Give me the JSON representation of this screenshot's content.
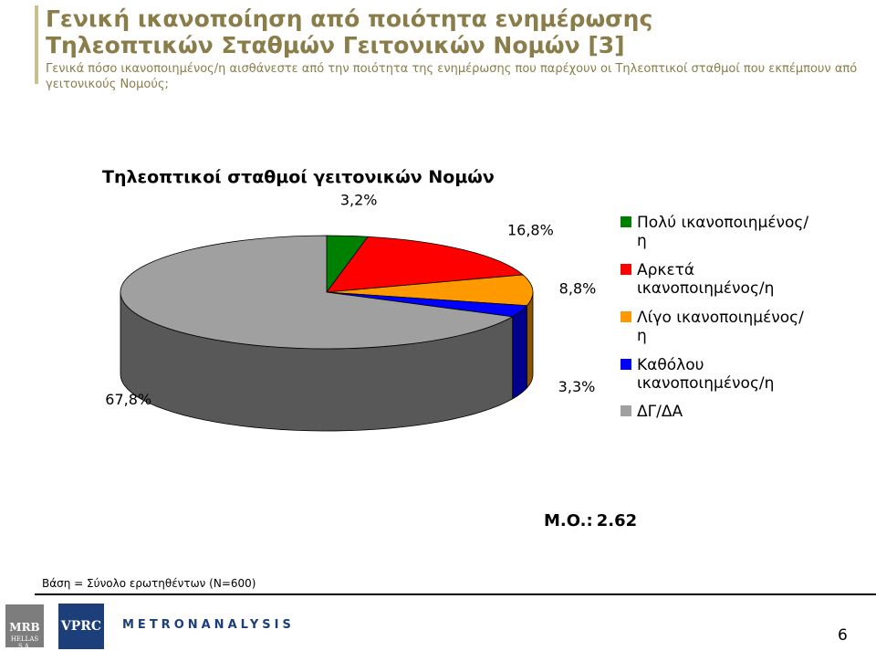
{
  "header": {
    "title_line1": "Γενική ικανοποίηση από ποιότητα ενημέρωσης",
    "title_line2": "Τηλεοπτικών Σταθμών Γειτονικών Νομών [3]",
    "question": "Γενικά πόσο ικανοποιημένος/η αισθάνεστε από την ποιότητα της ενημέρωσης που παρέχουν οι Τηλεοπτικοί σταθμοί που εκπέμπουν από γειτονικούς Νομούς;"
  },
  "chart_data": {
    "type": "pie",
    "title": "Τηλεοπτικοί σταθμοί γειτονικών Νομών",
    "categories": [
      "Πολύ ικανοποιημένος/η",
      "Αρκετά ικανοποιημένος/η",
      "Λίγο ικανοποιημένος/η",
      "Καθόλου ικανοποιημένος/η",
      "ΔΓ/ΔΑ"
    ],
    "values": [
      3.2,
      16.8,
      8.8,
      3.3,
      67.8
    ],
    "labels": [
      "3,2%",
      "16,8%",
      "8,8%",
      "3,3%",
      "67,8%"
    ],
    "colors": [
      "#008000",
      "#ff0000",
      "#ff9900",
      "#0000ff",
      "#a0a0a0"
    ],
    "legend_position": "right"
  },
  "legend": {
    "items": [
      {
        "label": "Πολύ ικανοποιημένος/η",
        "color": "#008000"
      },
      {
        "label": "Αρκετά ικανοποιημένος/η",
        "color": "#ff0000"
      },
      {
        "label": "Λίγο ικανοποιημένος/η",
        "color": "#ff9900"
      },
      {
        "label": "Καθόλου ικανοποιημένος/η",
        "color": "#0000ff"
      },
      {
        "label": "ΔΓ/ΔΑ",
        "color": "#a0a0a0"
      }
    ]
  },
  "mean": {
    "label": "M.O.:",
    "value": "2.62"
  },
  "footer": {
    "base": "Βάση = Σύνολο ερωτηθέντων (Ν=600)",
    "logo_mrb": "MRB",
    "logo_mrb_sub": "HELLAS S.A.",
    "logo_vprc": "VPRC",
    "logo_metron": "METRONANALYSIS",
    "page_number": "6"
  }
}
